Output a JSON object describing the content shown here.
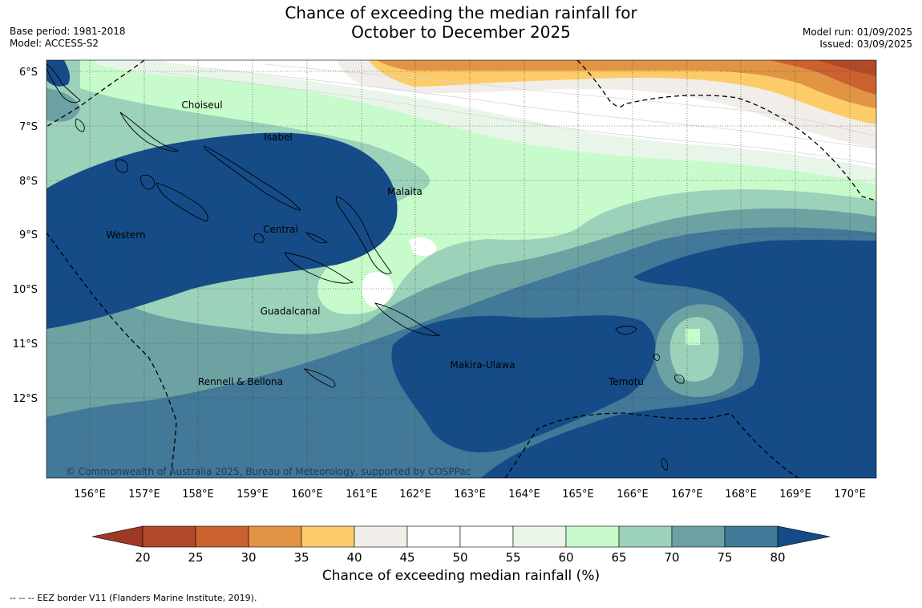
{
  "title": {
    "line1": "Chance of exceeding the median rainfall for",
    "line2": "October to December 2025"
  },
  "meta": {
    "base_period": "Base period: 1981-2018",
    "model": "Model: ACCESS-S2",
    "model_run": "Model run: 01/09/2025",
    "issued": "Issued: 03/09/2025"
  },
  "map": {
    "copyright": "© Commonwealth of Australia 2025, Bureau of Meteorology, supported by COSPPac",
    "lat_labels": [
      "6°S",
      "7°S",
      "8°S",
      "9°S",
      "10°S",
      "11°S",
      "12°S"
    ],
    "lon_labels": [
      "156°E",
      "157°E",
      "158°E",
      "159°E",
      "160°E",
      "161°E",
      "162°E",
      "163°E",
      "164°E",
      "165°E",
      "166°E",
      "167°E",
      "168°E",
      "169°E",
      "170°E"
    ],
    "regions": [
      {
        "id": "choiseul",
        "label": "Choiseul"
      },
      {
        "id": "isabel",
        "label": "Isabel"
      },
      {
        "id": "malaita",
        "label": "Malaita"
      },
      {
        "id": "western",
        "label": "Western"
      },
      {
        "id": "central",
        "label": "Central"
      },
      {
        "id": "guadalcanal",
        "label": "Guadalcanal"
      },
      {
        "id": "makira",
        "label": "Makira-Ulawa"
      },
      {
        "id": "rennell",
        "label": "Rennell & Bellona"
      },
      {
        "id": "temotu",
        "label": "Temotu"
      }
    ]
  },
  "colorbar": {
    "ticks": [
      "20",
      "25",
      "30",
      "35",
      "40",
      "45",
      "50",
      "55",
      "60",
      "65",
      "70",
      "75",
      "80"
    ],
    "colors": {
      "below_20": "#9e3a24",
      "20-25": "#b04a28",
      "25-30": "#cc6130",
      "30-35": "#e19444",
      "35-40": "#fdcc69",
      "40-45": "#f1ede8",
      "45-50": "#ffffff",
      "50-55": "#ffffff",
      "55-60": "#e9f5e9",
      "60-65": "#c8fbcb",
      "65-70": "#9cd2ba",
      "70-75": "#6da2a3",
      "75-80": "#427898",
      "above_80": "#154c87"
    },
    "label": "Chance of exceeding median rainfall (%)"
  },
  "legend": {
    "eez": "--  --  -- EEZ border V11 (Flanders Marine Institute, 2019)."
  }
}
